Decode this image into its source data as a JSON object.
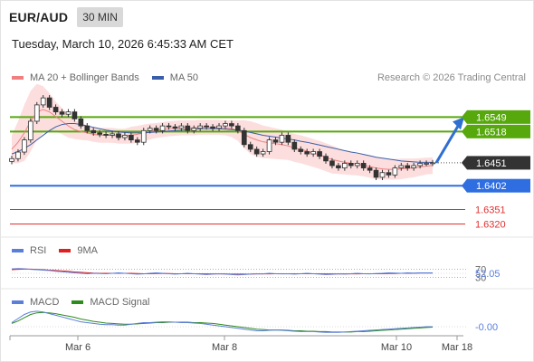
{
  "header": {
    "pair": "EUR/AUD",
    "timeframe": "30 MIN"
  },
  "timestamp": "Tuesday, March 10, 2026 6:45:33 AM CET",
  "legend": {
    "ma20": "MA 20 + Bollinger Bands",
    "ma50": "MA 50",
    "credit": "Research © 2026 Trading Central",
    "colors": {
      "ma20": "#f08080",
      "ma50": "#3a5ea8",
      "band": "#fddede"
    }
  },
  "rsi_legend": {
    "rsi": "RSI",
    "ma": "9MA",
    "colors": {
      "rsi": "#5b7fd9",
      "ma": "#e02020"
    }
  },
  "macd_legend": {
    "macd": "MACD",
    "signal": "MACD Signal",
    "colors": {
      "macd": "#5b7fd9",
      "signal": "#2e8b1e"
    }
  },
  "chart_data": [
    {
      "type": "candlestick",
      "title": "EUR/AUD",
      "timeframe": "30 MIN",
      "x_tick_labels": [
        "Mar 6",
        "Mar 8",
        "Mar 10",
        "Mar 18"
      ],
      "ylim": [
        1.629,
        1.66
      ],
      "current_price": 1.6451,
      "levels": [
        {
          "label": "1.6549",
          "value": 1.6549,
          "kind": "resistance",
          "color": "#56a80c",
          "tag": "#56a80c"
        },
        {
          "label": "1.6518",
          "value": 1.6518,
          "kind": "resistance",
          "color": "#56a80c",
          "tag": "#56a80c"
        },
        {
          "label": "1.6451",
          "value": 1.6451,
          "kind": "current",
          "color": "#333333",
          "tag": "#333333"
        },
        {
          "label": "1.6402",
          "value": 1.6402,
          "kind": "pivot",
          "color": "#2f6ee0",
          "tag": "#2f6ee0"
        },
        {
          "label": "1.6351",
          "value": 1.6351,
          "kind": "support",
          "color": "#e03030",
          "tag": "none"
        },
        {
          "label": "1.6320",
          "value": 1.632,
          "kind": "support",
          "color": "#e03030",
          "tag": "none"
        }
      ],
      "close_series": [
        1.646,
        1.6474,
        1.65,
        1.654,
        1.6575,
        1.659,
        1.657,
        1.656,
        1.6555,
        1.656,
        1.6545,
        1.653,
        1.652,
        1.6515,
        1.6512,
        1.651,
        1.6513,
        1.6505,
        1.651,
        1.65,
        1.6495,
        1.652,
        1.6525,
        1.652,
        1.653,
        1.6528,
        1.6525,
        1.653,
        1.652,
        1.6525,
        1.653,
        1.6528,
        1.6525,
        1.653,
        1.6535,
        1.653,
        1.652,
        1.649,
        1.648,
        1.647,
        1.6475,
        1.65,
        1.6495,
        1.651,
        1.6495,
        1.648,
        1.6475,
        1.647,
        1.6475,
        1.6465,
        1.6455,
        1.6445,
        1.644,
        1.645,
        1.6445,
        1.645,
        1.644,
        1.6435,
        1.642,
        1.643,
        1.6425,
        1.644,
        1.6445,
        1.644,
        1.6445,
        1.645,
        1.645,
        1.6451
      ],
      "ma20_series": [
        1.648,
        1.6495,
        1.6515,
        1.654,
        1.656,
        1.6565,
        1.656,
        1.655,
        1.654,
        1.653,
        1.6522,
        1.6518,
        1.6515,
        1.6512,
        1.651,
        1.651,
        1.651,
        1.6508,
        1.6508,
        1.651,
        1.6512,
        1.6515,
        1.6518,
        1.652,
        1.6522,
        1.6524,
        1.6525,
        1.6526,
        1.6526,
        1.6526,
        1.6527,
        1.6527,
        1.6527,
        1.6527,
        1.6526,
        1.6524,
        1.652,
        1.6512,
        1.6505,
        1.65,
        1.6496,
        1.6494,
        1.6492,
        1.649,
        1.6487,
        1.6483,
        1.648,
        1.6476,
        1.6472,
        1.6468,
        1.6463,
        1.6458,
        1.6455,
        1.6452,
        1.645,
        1.6448,
        1.6446,
        1.6443,
        1.644,
        1.6438,
        1.6437,
        1.6437,
        1.6438,
        1.6439,
        1.644,
        1.6442,
        1.6444,
        1.6445
      ],
      "ma50_series": [
        1.647,
        1.6475,
        1.6482,
        1.649,
        1.65,
        1.651,
        1.652,
        1.6528,
        1.6533,
        1.6535,
        1.6535,
        1.6533,
        1.653,
        1.6527,
        1.6524,
        1.6521,
        1.6519,
        1.6517,
        1.6516,
        1.6515,
        1.6515,
        1.6515,
        1.6516,
        1.6517,
        1.6518,
        1.6519,
        1.652,
        1.6521,
        1.6522,
        1.6523,
        1.6524,
        1.6524,
        1.6524,
        1.6524,
        1.6523,
        1.6522,
        1.6521,
        1.6519,
        1.6516,
        1.6513,
        1.651,
        1.6508,
        1.6506,
        1.6504,
        1.6502,
        1.65,
        1.6497,
        1.6495,
        1.6492,
        1.6489,
        1.6486,
        1.6483,
        1.648,
        1.6477,
        1.6474,
        1.6472,
        1.6469,
        1.6466,
        1.6463,
        1.6461,
        1.6459,
        1.6457,
        1.6455,
        1.6454,
        1.6453,
        1.6452,
        1.6452,
        1.6452
      ],
      "bb_width": [
        0.003,
        0.0045,
        0.006,
        0.0065,
        0.006,
        0.005,
        0.004,
        0.0032,
        0.0028,
        0.0025,
        0.002,
        0.0018,
        0.0016,
        0.0016,
        0.0016,
        0.0016,
        0.0016,
        0.0016,
        0.0016,
        0.0018,
        0.0018,
        0.0018,
        0.0017,
        0.0016,
        0.0016,
        0.0016,
        0.0016,
        0.0016,
        0.0016,
        0.0016,
        0.0016,
        0.0016,
        0.0016,
        0.0016,
        0.0016,
        0.0018,
        0.0022,
        0.003,
        0.0035,
        0.0036,
        0.0035,
        0.0034,
        0.0033,
        0.0032,
        0.003,
        0.003,
        0.003,
        0.003,
        0.003,
        0.003,
        0.003,
        0.003,
        0.0028,
        0.0026,
        0.0025,
        0.0024,
        0.0024,
        0.0024,
        0.0024,
        0.0023,
        0.0022,
        0.0022,
        0.0022,
        0.0021,
        0.002,
        0.0019,
        0.0018,
        0.0018
      ],
      "projection": {
        "from": 1.6451,
        "to": 1.6549
      }
    },
    {
      "type": "line",
      "title": "RSI",
      "current_value": "52.05",
      "levels": [
        {
          "label": "70",
          "value": 70
        },
        {
          "label": "30",
          "value": 30
        }
      ],
      "ylim": [
        0,
        100
      ],
      "rsi_series": [
        72,
        74,
        73,
        70,
        68,
        66,
        64,
        60,
        58,
        55,
        52,
        50,
        48,
        50,
        49,
        48,
        50,
        52,
        50,
        48,
        46,
        47,
        50,
        52,
        50,
        48,
        46,
        48,
        50,
        48,
        46,
        44,
        46,
        48,
        46,
        44,
        42,
        44,
        46,
        48,
        47,
        50,
        48,
        47,
        48,
        46,
        48,
        50,
        48,
        46,
        44,
        45,
        47,
        46,
        48,
        50,
        48,
        47,
        49,
        50,
        52,
        51,
        50,
        52,
        51,
        52,
        52,
        52.05
      ],
      "ma9_series": [
        68,
        70,
        71,
        71,
        70,
        68,
        66,
        64,
        62,
        60,
        57,
        55,
        53,
        51,
        50,
        50,
        50,
        50,
        50,
        50,
        49,
        48,
        48,
        49,
        49,
        49,
        48,
        48,
        48,
        48,
        48,
        47,
        47,
        47,
        47,
        46,
        46,
        46,
        46,
        47,
        47,
        47,
        48,
        48,
        48,
        48,
        48,
        48,
        48,
        48,
        47,
        47,
        47,
        47,
        47,
        47,
        48,
        48,
        48,
        48,
        49,
        49,
        50,
        50,
        50,
        51,
        51,
        51
      ]
    },
    {
      "type": "line",
      "title": "MACD",
      "current_value": "-0.00",
      "macd_series": [
        0.001,
        0.002,
        0.003,
        0.0036,
        0.0038,
        0.0036,
        0.0032,
        0.0028,
        0.0024,
        0.002,
        0.0016,
        0.0012,
        0.001,
        0.0008,
        0.0006,
        0.0005,
        0.0005,
        0.0004,
        0.0004,
        0.0006,
        0.0008,
        0.001,
        0.001,
        0.0011,
        0.0012,
        0.0012,
        0.0011,
        0.001,
        0.001,
        0.0009,
        0.0008,
        0.0006,
        0.0004,
        0.0002,
        0.0,
        -0.0002,
        -0.0004,
        -0.0006,
        -0.0008,
        -0.001,
        -0.001,
        -0.0009,
        -0.0008,
        -0.0009,
        -0.001,
        -0.0011,
        -0.0012,
        -0.0012,
        -0.0012,
        -0.0013,
        -0.0014,
        -0.0014,
        -0.0014,
        -0.0013,
        -0.0012,
        -0.0011,
        -0.001,
        -0.0009,
        -0.0008,
        -0.0007,
        -0.0006,
        -0.0005,
        -0.0004,
        -0.0003,
        -0.0002,
        -0.0001,
        0.0,
        0.0
      ],
      "signal_series": [
        0.0008,
        0.0014,
        0.0022,
        0.003,
        0.0034,
        0.0035,
        0.0034,
        0.0032,
        0.0029,
        0.0026,
        0.0023,
        0.0019,
        0.0016,
        0.0013,
        0.0011,
        0.0009,
        0.0008,
        0.0007,
        0.0006,
        0.0006,
        0.0007,
        0.0008,
        0.0009,
        0.001,
        0.001,
        0.0011,
        0.0011,
        0.0011,
        0.0011,
        0.001,
        0.001,
        0.0009,
        0.0008,
        0.0006,
        0.0004,
        0.0002,
        0.0,
        -0.0002,
        -0.0004,
        -0.0006,
        -0.0007,
        -0.0008,
        -0.0008,
        -0.0008,
        -0.0009,
        -0.001,
        -0.001,
        -0.0011,
        -0.0011,
        -0.0012,
        -0.0012,
        -0.0013,
        -0.0013,
        -0.0013,
        -0.0013,
        -0.0012,
        -0.0012,
        -0.0011,
        -0.001,
        -0.0009,
        -0.0008,
        -0.0007,
        -0.0006,
        -0.0005,
        -0.0004,
        -0.0003,
        -0.0002,
        -0.0001
      ]
    }
  ]
}
